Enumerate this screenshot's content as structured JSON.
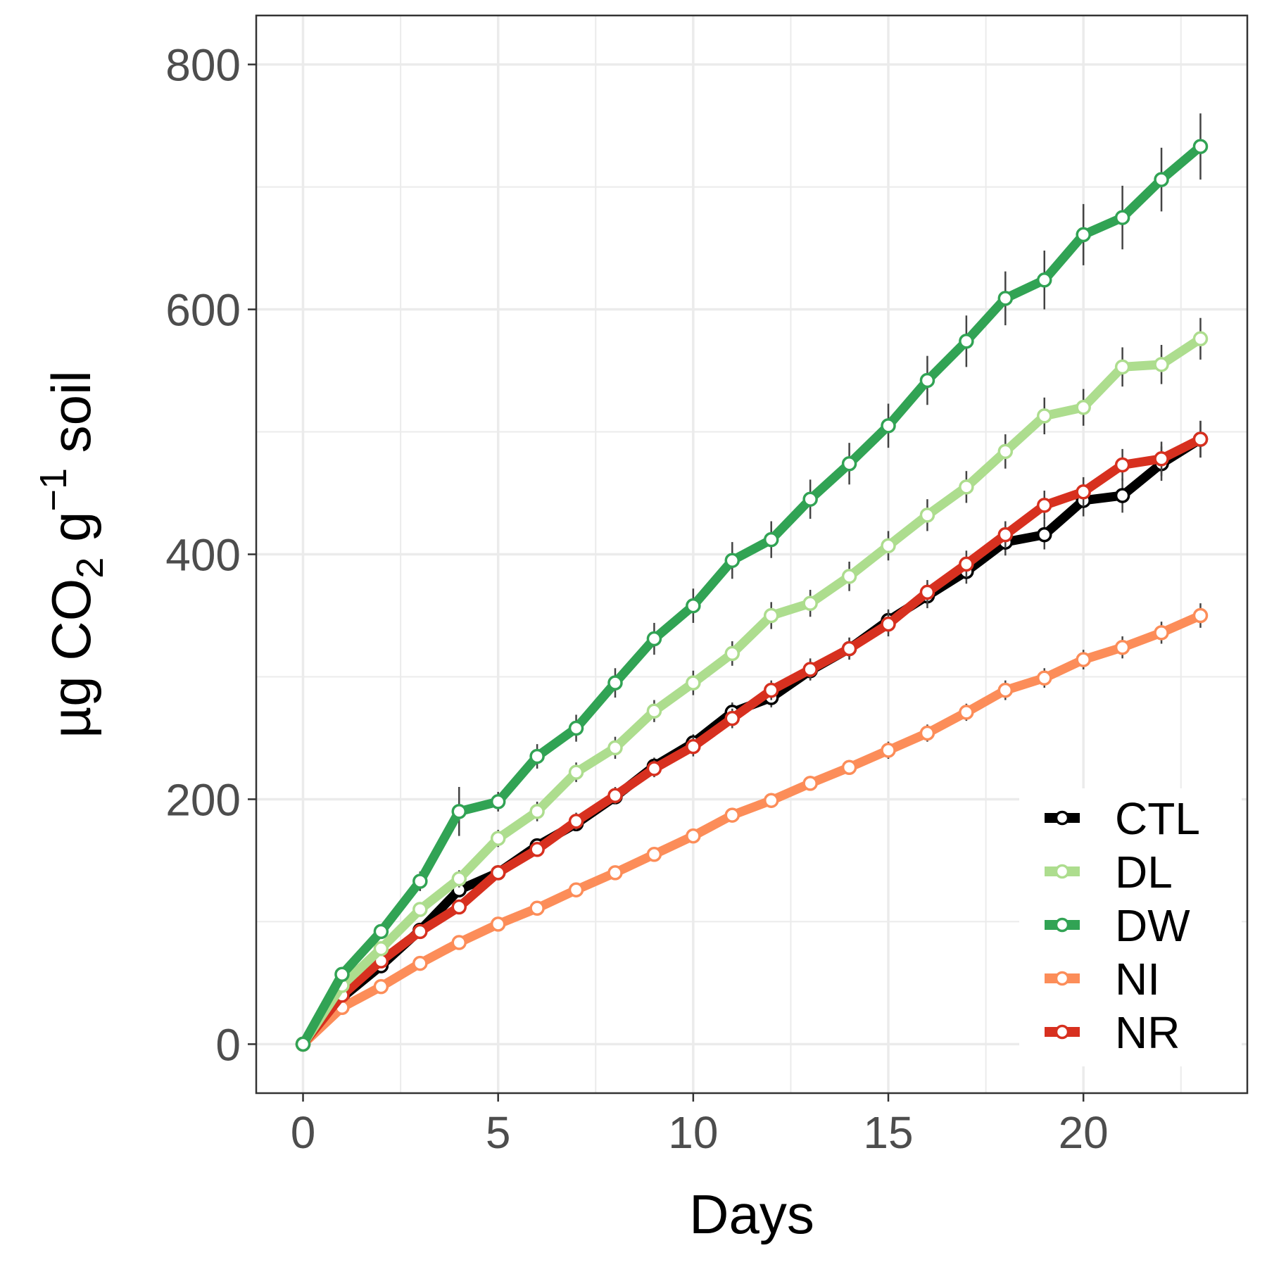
{
  "chart_data": {
    "type": "line",
    "title": "",
    "xlabel": "Days",
    "ylabel": {
      "prefix": "µg CO",
      "sub": "2",
      "mid": " g",
      "sup": "−1",
      "suffix": " soil"
    },
    "xlim": [
      -1.2,
      24.2
    ],
    "ylim": [
      -40,
      840
    ],
    "x_ticks": [
      0,
      5,
      10,
      15,
      20
    ],
    "x_tick_labels": [
      "0",
      "5",
      "10",
      "15",
      "20"
    ],
    "y_ticks": [
      0,
      200,
      400,
      600,
      800
    ],
    "y_tick_labels": [
      "0",
      "200",
      "400",
      "600",
      "800"
    ],
    "grid": true,
    "legend_position": "bottom-right",
    "x": [
      0,
      1,
      2,
      3,
      4,
      5,
      6,
      7,
      8,
      9,
      10,
      11,
      12,
      13,
      14,
      15,
      16,
      17,
      18,
      19,
      20,
      21,
      22,
      23
    ],
    "series": [
      {
        "name": "CTL",
        "color": "#000000",
        "point_stroke": "#000000",
        "values": [
          0,
          38,
          64,
          93,
          126,
          140,
          162,
          180,
          202,
          227,
          246,
          271,
          283,
          305,
          323,
          346,
          366,
          386,
          410,
          416,
          444,
          448,
          474,
          494
        ],
        "errors": [
          0,
          3,
          4,
          5,
          6,
          5,
          6,
          6,
          6,
          7,
          7,
          8,
          8,
          8,
          9,
          9,
          10,
          10,
          11,
          12,
          13,
          14,
          14,
          15
        ]
      },
      {
        "name": "NI",
        "color": "#fc8d59",
        "point_stroke": "#fc8d59",
        "values": [
          0,
          30,
          47,
          66,
          83,
          98,
          111,
          126,
          140,
          155,
          170,
          187,
          199,
          213,
          226,
          240,
          254,
          271,
          289,
          299,
          314,
          324,
          336,
          350
        ],
        "errors": [
          0,
          2,
          3,
          3,
          4,
          4,
          4,
          5,
          5,
          5,
          5,
          6,
          6,
          6,
          6,
          7,
          7,
          7,
          8,
          8,
          8,
          9,
          9,
          10
        ]
      },
      {
        "name": "NR",
        "color": "#d7301f",
        "point_stroke": "#d7301f",
        "values": [
          0,
          40,
          68,
          92,
          112,
          140,
          159,
          182,
          203,
          225,
          243,
          266,
          289,
          306,
          323,
          343,
          369,
          392,
          416,
          440,
          451,
          473,
          478,
          494
        ],
        "errors": [
          0,
          3,
          4,
          5,
          6,
          6,
          6,
          7,
          7,
          7,
          8,
          8,
          8,
          9,
          9,
          10,
          10,
          11,
          11,
          12,
          12,
          13,
          14,
          15
        ]
      },
      {
        "name": "DL",
        "color": "#addd8e",
        "point_stroke": "#addd8e",
        "values": [
          0,
          48,
          78,
          110,
          135,
          168,
          190,
          222,
          242,
          272,
          295,
          319,
          350,
          360,
          382,
          407,
          432,
          455,
          484,
          513,
          520,
          553,
          555,
          576
        ],
        "errors": [
          0,
          4,
          5,
          6,
          7,
          7,
          8,
          8,
          9,
          9,
          10,
          10,
          11,
          11,
          12,
          12,
          13,
          13,
          14,
          15,
          15,
          16,
          16,
          17
        ]
      },
      {
        "name": "DW",
        "color": "#31a354",
        "point_stroke": "#31a354",
        "values": [
          0,
          57,
          92,
          133,
          190,
          198,
          235,
          258,
          295,
          331,
          358,
          395,
          412,
          445,
          474,
          505,
          542,
          574,
          609,
          624,
          661,
          675,
          706,
          733
        ],
        "errors": [
          0,
          5,
          6,
          8,
          20,
          8,
          10,
          11,
          12,
          13,
          14,
          15,
          15,
          16,
          17,
          18,
          20,
          21,
          22,
          24,
          25,
          26,
          26,
          27
        ]
      }
    ],
    "legend": [
      {
        "name": "CTL",
        "color": "#000000",
        "point_stroke": "#000000"
      },
      {
        "name": "DL",
        "color": "#addd8e",
        "point_stroke": "#addd8e"
      },
      {
        "name": "DW",
        "color": "#31a354",
        "point_stroke": "#31a354"
      },
      {
        "name": "NI",
        "color": "#fc8d59",
        "point_stroke": "#fc8d59"
      },
      {
        "name": "NR",
        "color": "#d7301f",
        "point_stroke": "#d7301f"
      }
    ]
  }
}
